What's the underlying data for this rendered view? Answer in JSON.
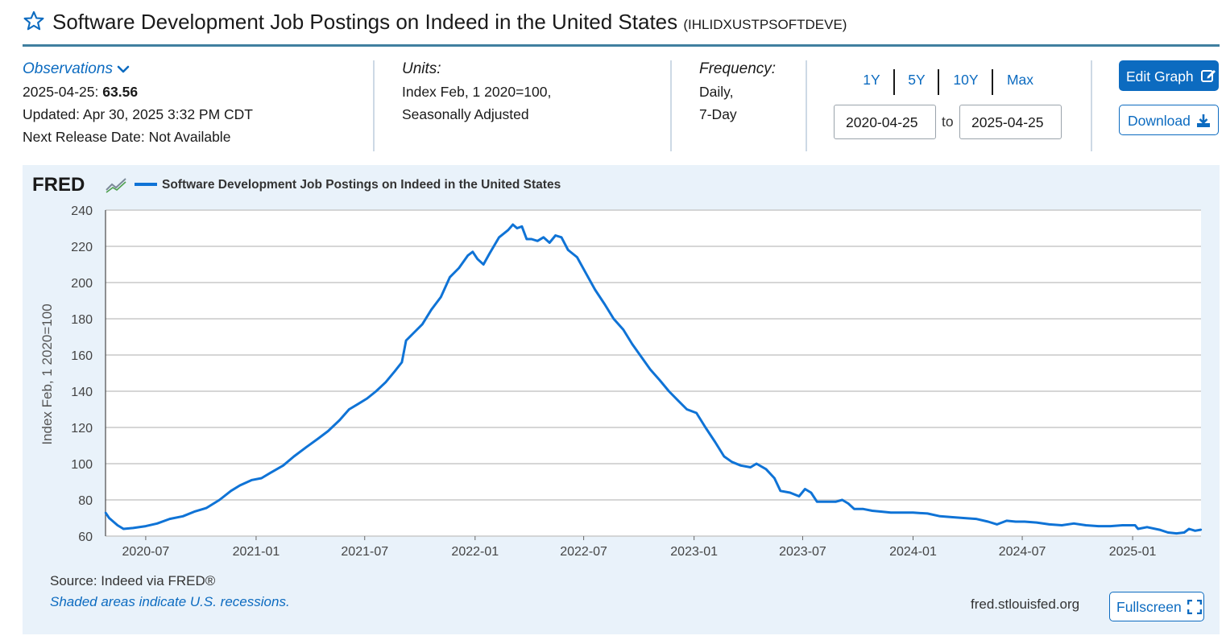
{
  "header": {
    "title": "Software Development Job Postings on Indeed in the United States",
    "series_code": "(IHLIDXUSTPSOFTDEVE)"
  },
  "observations": {
    "label": "Observations",
    "date": "2025-04-25:",
    "value": "63.56",
    "updated": "Updated: Apr 30, 2025 3:32 PM CDT",
    "next_release": "Next Release Date: Not Available"
  },
  "units": {
    "label": "Units:",
    "line1": "Index Feb, 1 2020=100,",
    "line2": "Seasonally Adjusted"
  },
  "frequency": {
    "label": "Frequency:",
    "line1": "Daily,",
    "line2": "7-Day"
  },
  "range": {
    "buttons": [
      "1Y",
      "5Y",
      "10Y",
      "Max"
    ],
    "start": "2020-04-25",
    "to": "to",
    "end": "2025-04-25"
  },
  "actions": {
    "edit_label": "Edit Graph",
    "download_label": "Download",
    "fullscreen_label": "Fullscreen"
  },
  "graph": {
    "logo": "FRED",
    "source": "Source: Indeed via FRED®",
    "recession_note": "Shaded areas indicate U.S. recessions.",
    "site": "fred.stlouisfed.org"
  },
  "colors": {
    "accent": "#0c6bc0",
    "series": "#0f73d6",
    "panel_bg": "#e9f2fa",
    "title_rule": "#3f7f9f"
  },
  "icons": {
    "favorite": "star-outline-icon",
    "observations_toggle": "chevron-down-icon",
    "edit": "edit-icon",
    "download": "download-icon",
    "fullscreen": "fullscreen-icon",
    "logo_badge": "chart-line-icon"
  },
  "chart_data": {
    "type": "line",
    "legend": "Software Development Job Postings on Indeed in the United States",
    "ylabel": "Index Feb, 1 2020=100",
    "xlabel": "",
    "ylim": [
      60,
      240
    ],
    "yticks": [
      60,
      80,
      100,
      120,
      140,
      160,
      180,
      200,
      220,
      240
    ],
    "xlim": [
      "2020-04-25",
      "2025-04-25"
    ],
    "xticks": [
      "2020-07",
      "2021-01",
      "2021-07",
      "2022-01",
      "2022-07",
      "2023-01",
      "2023-07",
      "2024-01",
      "2024-07",
      "2025-01"
    ],
    "grid": true,
    "legend_position": "top-left",
    "series": [
      {
        "name": "Software Development Job Postings on Indeed in the United States",
        "points": [
          [
            "2020-04-25",
            73
          ],
          [
            "2020-05-01",
            70
          ],
          [
            "2020-05-15",
            66
          ],
          [
            "2020-05-25",
            64
          ],
          [
            "2020-06-10",
            64.5
          ],
          [
            "2020-07-01",
            65.5
          ],
          [
            "2020-07-20",
            67
          ],
          [
            "2020-08-10",
            69.5
          ],
          [
            "2020-09-01",
            71
          ],
          [
            "2020-09-20",
            73.5
          ],
          [
            "2020-10-10",
            75.5
          ],
          [
            "2020-11-01",
            80
          ],
          [
            "2020-11-20",
            85
          ],
          [
            "2020-12-05",
            88
          ],
          [
            "2020-12-25",
            91
          ],
          [
            "2021-01-10",
            92
          ],
          [
            "2021-01-25",
            95
          ],
          [
            "2021-02-15",
            99
          ],
          [
            "2021-03-05",
            104
          ],
          [
            "2021-03-25",
            109
          ],
          [
            "2021-04-15",
            114
          ],
          [
            "2021-05-01",
            118
          ],
          [
            "2021-05-20",
            124
          ],
          [
            "2021-06-05",
            130
          ],
          [
            "2021-06-20",
            133
          ],
          [
            "2021-07-05",
            136
          ],
          [
            "2021-07-20",
            140
          ],
          [
            "2021-08-05",
            145
          ],
          [
            "2021-08-20",
            151
          ],
          [
            "2021-09-01",
            156
          ],
          [
            "2021-09-08",
            168
          ],
          [
            "2021-09-20",
            172
          ],
          [
            "2021-10-05",
            177
          ],
          [
            "2021-10-20",
            185
          ],
          [
            "2021-11-05",
            192
          ],
          [
            "2021-11-20",
            203
          ],
          [
            "2021-12-05",
            208
          ],
          [
            "2021-12-20",
            215
          ],
          [
            "2021-12-28",
            217
          ],
          [
            "2022-01-05",
            213
          ],
          [
            "2022-01-15",
            210
          ],
          [
            "2022-01-25",
            216
          ],
          [
            "2022-02-10",
            225
          ],
          [
            "2022-02-25",
            229
          ],
          [
            "2022-03-05",
            232
          ],
          [
            "2022-03-12",
            230
          ],
          [
            "2022-03-20",
            231
          ],
          [
            "2022-03-28",
            224
          ],
          [
            "2022-04-05",
            224
          ],
          [
            "2022-04-15",
            223
          ],
          [
            "2022-04-25",
            225
          ],
          [
            "2022-05-05",
            222
          ],
          [
            "2022-05-15",
            226
          ],
          [
            "2022-05-25",
            225
          ],
          [
            "2022-06-05",
            218
          ],
          [
            "2022-06-20",
            214
          ],
          [
            "2022-07-05",
            205
          ],
          [
            "2022-07-20",
            196
          ],
          [
            "2022-08-05",
            188
          ],
          [
            "2022-08-20",
            180
          ],
          [
            "2022-09-05",
            174
          ],
          [
            "2022-09-20",
            166
          ],
          [
            "2022-10-05",
            159
          ],
          [
            "2022-10-20",
            152
          ],
          [
            "2022-11-05",
            146
          ],
          [
            "2022-11-20",
            140
          ],
          [
            "2022-12-05",
            135
          ],
          [
            "2022-12-20",
            130
          ],
          [
            "2023-01-05",
            128
          ],
          [
            "2023-01-20",
            120
          ],
          [
            "2023-02-05",
            112
          ],
          [
            "2023-02-20",
            104
          ],
          [
            "2023-03-05",
            101
          ],
          [
            "2023-03-20",
            99
          ],
          [
            "2023-04-05",
            98
          ],
          [
            "2023-04-15",
            100
          ],
          [
            "2023-05-01",
            97
          ],
          [
            "2023-05-15",
            92
          ],
          [
            "2023-05-25",
            85
          ],
          [
            "2023-06-10",
            84
          ],
          [
            "2023-06-25",
            82
          ],
          [
            "2023-07-05",
            86
          ],
          [
            "2023-07-15",
            84
          ],
          [
            "2023-07-25",
            79
          ],
          [
            "2023-08-10",
            79
          ],
          [
            "2023-08-25",
            79
          ],
          [
            "2023-09-05",
            80
          ],
          [
            "2023-09-15",
            78
          ],
          [
            "2023-09-25",
            75
          ],
          [
            "2023-10-10",
            75
          ],
          [
            "2023-10-25",
            74
          ],
          [
            "2023-11-10",
            73.5
          ],
          [
            "2023-11-25",
            73
          ],
          [
            "2023-12-10",
            73
          ],
          [
            "2024-01-01",
            73
          ],
          [
            "2024-01-25",
            72.5
          ],
          [
            "2024-02-15",
            71
          ],
          [
            "2024-03-05",
            70.5
          ],
          [
            "2024-03-25",
            70
          ],
          [
            "2024-04-15",
            69.5
          ],
          [
            "2024-05-05",
            68
          ],
          [
            "2024-05-20",
            66.5
          ],
          [
            "2024-06-05",
            68.5
          ],
          [
            "2024-06-20",
            68
          ],
          [
            "2024-07-05",
            68
          ],
          [
            "2024-07-25",
            67.5
          ],
          [
            "2024-08-15",
            66.5
          ],
          [
            "2024-09-05",
            66
          ],
          [
            "2024-09-25",
            67
          ],
          [
            "2024-10-15",
            66
          ],
          [
            "2024-11-05",
            65.5
          ],
          [
            "2024-11-25",
            65.5
          ],
          [
            "2024-12-15",
            66
          ],
          [
            "2025-01-05",
            66
          ],
          [
            "2025-01-10",
            64
          ],
          [
            "2025-01-25",
            65
          ],
          [
            "2025-02-15",
            63.5
          ],
          [
            "2025-03-01",
            62
          ],
          [
            "2025-03-15",
            61.5
          ],
          [
            "2025-03-28",
            62
          ],
          [
            "2025-04-05",
            64
          ],
          [
            "2025-04-15",
            63
          ],
          [
            "2025-04-25",
            63.56
          ]
        ]
      }
    ]
  }
}
